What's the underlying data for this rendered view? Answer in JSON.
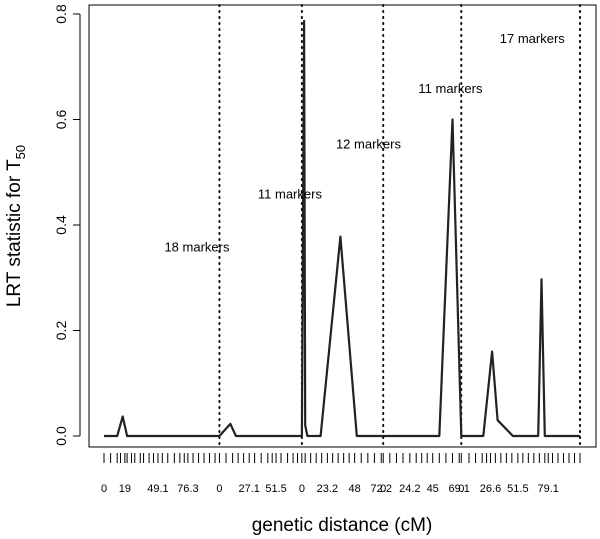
{
  "chart_data": {
    "type": "line",
    "xlabel": "genetic distance (cM)",
    "ylabel_main": "LRT statistic for T",
    "ylabel_sub": "50",
    "ylim": [
      0,
      0.8
    ],
    "y_ticks": [
      "0.0",
      "0.2",
      "0.4",
      "0.6",
      "0.8"
    ],
    "y_tick_values": [
      0,
      0.2,
      0.4,
      0.6,
      0.8
    ],
    "x_tick_labels": [
      "0",
      "19",
      "49.1",
      "76.3",
      "0",
      "27.1",
      "51.5",
      "0",
      "23.2",
      "48",
      "72.2",
      "0",
      "24.2",
      "45",
      "69.1",
      "0",
      "26.6",
      "51.5",
      "79.1"
    ],
    "x_tick_label_positions": [
      0,
      19,
      49.1,
      76.3,
      105,
      132.1,
      156.5,
      180,
      203.2,
      228,
      252.2,
      254,
      278.2,
      299,
      323.1,
      325,
      351.6,
      376.5,
      404.1
    ],
    "x_minor_ticks": [
      0,
      6,
      12,
      15,
      19,
      21,
      25,
      28,
      33,
      36,
      41,
      45,
      49.1,
      53,
      58,
      64,
      69,
      73,
      76.3,
      81,
      86,
      91,
      96,
      101,
      105,
      111,
      117,
      122,
      127,
      132.1,
      137,
      143,
      149,
      153,
      156.5,
      161,
      167,
      172,
      176,
      180,
      183,
      188,
      193,
      198,
      203.2,
      208,
      213,
      218,
      223,
      228,
      234,
      240,
      246,
      252.2,
      254,
      260,
      266,
      272,
      278.2,
      284,
      289,
      294,
      299,
      305,
      311,
      317,
      323.1,
      325,
      332,
      338,
      344,
      348,
      351.6,
      356,
      361,
      366,
      371,
      376.5,
      381,
      386,
      391,
      396,
      401,
      404.1,
      408,
      413,
      418,
      423,
      428,
      433
    ],
    "xlim": [
      0,
      433
    ],
    "chromosome_boundaries": [
      105,
      180,
      254,
      325,
      433
    ],
    "annotations": [
      {
        "text": "18 markers",
        "x": 55,
        "y": 0.35
      },
      {
        "text": "11 markers",
        "x": 140,
        "y": 0.45
      },
      {
        "text": "12 markers",
        "x": 211,
        "y": 0.545
      },
      {
        "text": "11 markers",
        "x": 286,
        "y": 0.65
      },
      {
        "text": "17 markers",
        "x": 360,
        "y": 0.745
      }
    ],
    "series": [
      {
        "x": [
          0,
          12,
          17,
          21,
          105,
          115,
          120,
          180,
          182,
          183,
          185,
          197,
          215,
          230,
          254,
          305,
          317,
          325,
          345,
          353,
          358,
          372,
          395,
          398,
          401,
          433
        ],
        "y": [
          0,
          0,
          0.037,
          0,
          0,
          0.023,
          0,
          0,
          0.787,
          0.02,
          0,
          0,
          0.378,
          0,
          0,
          0,
          0.6,
          0,
          0,
          0.16,
          0.03,
          0,
          0,
          0.297,
          0,
          0
        ]
      }
    ]
  }
}
